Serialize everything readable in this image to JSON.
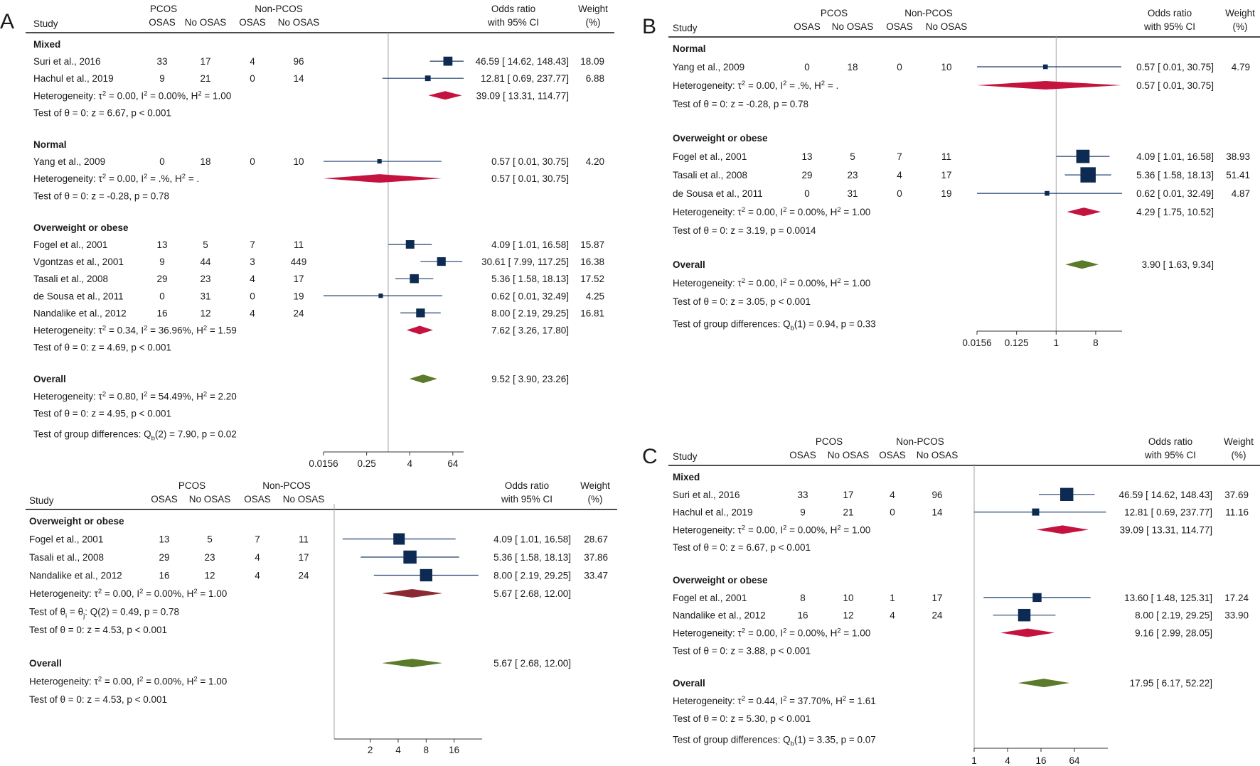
{
  "colors": {
    "marker": "#0d2b52",
    "ci_line": "#1d3f6e",
    "subgroup_diamond": "#c5133f",
    "subgroup_diamond_alt": "#8b2a32",
    "overall_diamond": "#5b7a2a",
    "ref_line": "#a0a0a0",
    "text": "#1a1a1a"
  },
  "chart_data": [
    {
      "panel_label": "A",
      "type": "forest",
      "header": {
        "study": "Study",
        "pcos": "PCOS",
        "nonpcos": "Non-PCOS",
        "osas": "OSAS",
        "no_osas": "No OSAS",
        "or_line1": "Odds ratio",
        "or_line2": "with 95% CI",
        "w_line1": "Weight",
        "w_line2": "(%)"
      },
      "xscale": "log2",
      "xlim": [
        0.0156,
        128
      ],
      "xticks": [
        0.0156,
        0.25,
        4,
        64
      ],
      "xticklabels": [
        "0.0156",
        "0.25",
        "4",
        "64"
      ],
      "ref_value": 1,
      "groups": [
        {
          "name": "Mixed",
          "studies": [
            {
              "study": "Suri et al., 2016",
              "pcos_osas": "33",
              "pcos_no": "17",
              "non_osas": "4",
              "non_no": "96",
              "or": 46.59,
              "lo": 14.62,
              "hi": 148.43,
              "or_text": "46.59 [ 14.62,  148.43]",
              "weight": "18.09"
            },
            {
              "study": "Hachul et al., 2019",
              "pcos_osas": "9",
              "pcos_no": "21",
              "non_osas": "0",
              "non_no": "14",
              "or": 12.81,
              "lo": 0.69,
              "hi": 237.77,
              "or_text": "12.81 [  0.69,  237.77]",
              "weight": "6.88"
            }
          ],
          "pooled": {
            "or": 39.09,
            "lo": 13.31,
            "hi": 114.77,
            "or_text": "39.09 [ 13.31,  114.77]"
          },
          "heterogeneity": "Heterogeneity: τ² = 0.00, I² = 0.00%, H² = 1.00",
          "test": "Test of θ = 0: z = 6.67, p < 0.001"
        },
        {
          "name": "Normal",
          "studies": [
            {
              "study": "Yang et al., 2009",
              "pcos_osas": "0",
              "pcos_no": "18",
              "non_osas": "0",
              "non_no": "10",
              "or": 0.57,
              "lo": 0.01,
              "hi": 30.75,
              "or_text": "0.57 [   0.01,   30.75]",
              "weight": "4.20"
            }
          ],
          "pooled": {
            "or": 0.57,
            "lo": 0.01,
            "hi": 30.75,
            "or_text": "0.57 [   0.01,   30.75]"
          },
          "heterogeneity": "Heterogeneity: τ² = 0.00, I² = .%, H² = .",
          "test": "Test of θ = 0: z = -0.28, p = 0.78"
        },
        {
          "name": "Overweight or obese",
          "studies": [
            {
              "study": "Fogel et al., 2001",
              "pcos_osas": "13",
              "pcos_no": "5",
              "non_osas": "7",
              "non_no": "11",
              "or": 4.09,
              "lo": 1.01,
              "hi": 16.58,
              "or_text": "4.09 [   1.01,   16.58]",
              "weight": "15.87"
            },
            {
              "study": "Vgontzas et al., 2001",
              "pcos_osas": "9",
              "pcos_no": "44",
              "non_osas": "3",
              "non_no": "449",
              "or": 30.61,
              "lo": 7.99,
              "hi": 117.25,
              "or_text": "30.61 [   7.99,  117.25]",
              "weight": "16.38"
            },
            {
              "study": "Tasali et al., 2008",
              "pcos_osas": "29",
              "pcos_no": "23",
              "non_osas": "4",
              "non_no": "17",
              "or": 5.36,
              "lo": 1.58,
              "hi": 18.13,
              "or_text": "5.36 [   1.58,   18.13]",
              "weight": "17.52"
            },
            {
              "study": "de Sousa et al., 2011",
              "pcos_osas": "0",
              "pcos_no": "31",
              "non_osas": "0",
              "non_no": "19",
              "or": 0.62,
              "lo": 0.01,
              "hi": 32.49,
              "or_text": "0.62 [   0.01,   32.49]",
              "weight": "4.25"
            },
            {
              "study": "Nandalike et al., 2012",
              "pcos_osas": "16",
              "pcos_no": "12",
              "non_osas": "4",
              "non_no": "24",
              "or": 8.0,
              "lo": 2.19,
              "hi": 29.25,
              "or_text": "8.00 [   2.19,   29.25]",
              "weight": "16.81"
            }
          ],
          "pooled": {
            "or": 7.62,
            "lo": 3.26,
            "hi": 17.8,
            "or_text": "7.62 [   3.26,   17.80]"
          },
          "heterogeneity": "Heterogeneity: τ² = 0.34, I² = 36.96%, H² = 1.59",
          "test": "Test of θ = 0: z = 4.69, p < 0.001"
        }
      ],
      "overall": {
        "label": "Overall",
        "or": 9.52,
        "lo": 3.9,
        "hi": 23.26,
        "or_text": "9.52 [   3.90,   23.26]",
        "heterogeneity": "Heterogeneity: τ² = 0.80, I² = 54.49%, H² = 2.20",
        "test": "Test of θ = 0: z = 4.95, p < 0.001"
      },
      "group_diff": "Test of group differences: Qb(2) = 7.90, p = 0.02"
    },
    {
      "panel_label": "",
      "type": "forest",
      "header": {
        "study": "Study",
        "pcos": "PCOS",
        "nonpcos": "Non-PCOS",
        "osas": "OSAS",
        "no_osas": "No OSAS",
        "or_line1": "Odds ratio",
        "or_line2": "with 95% CI",
        "w_line1": "Weight",
        "w_line2": "(%)"
      },
      "xscale": "log2",
      "xlim": [
        0.82,
        32
      ],
      "xticks": [
        2,
        4,
        8,
        16
      ],
      "xticklabels": [
        "2",
        "4",
        "8",
        "16"
      ],
      "ref_value": null,
      "groups": [
        {
          "name": "Overweight or obese",
          "studies": [
            {
              "study": "Fogel et al., 2001",
              "pcos_osas": "13",
              "pcos_no": "5",
              "non_osas": "7",
              "non_no": "11",
              "or": 4.09,
              "lo": 1.01,
              "hi": 16.58,
              "or_text": "4.09 [ 1.01,  16.58]",
              "weight": "28.67"
            },
            {
              "study": "Tasali et al., 2008",
              "pcos_osas": "29",
              "pcos_no": "23",
              "non_osas": "4",
              "non_no": "17",
              "or": 5.36,
              "lo": 1.58,
              "hi": 18.13,
              "or_text": "5.36 [ 1.58,  18.13]",
              "weight": "37.86"
            },
            {
              "study": "Nandalike et al., 2012",
              "pcos_osas": "16",
              "pcos_no": "12",
              "non_osas": "4",
              "non_no": "24",
              "or": 8.0,
              "lo": 2.19,
              "hi": 29.25,
              "or_text": "8.00 [ 2.19,  29.25]",
              "weight": "33.47"
            }
          ],
          "pooled": {
            "or": 5.67,
            "lo": 2.68,
            "hi": 12.0,
            "or_text": "5.67 [ 2.68,  12.00]"
          },
          "heterogeneity": "Heterogeneity: τ² = 0.00, I² = 0.00%, H² = 1.00",
          "test_q": "Test of θi = θj: Q(2) = 0.49, p = 0.78",
          "test": "Test of θ = 0: z = 4.53, p < 0.001"
        }
      ],
      "overall": {
        "label": "Overall",
        "or": 5.67,
        "lo": 2.68,
        "hi": 12.0,
        "or_text": "5.67 [ 2.68,  12.00]",
        "heterogeneity": "Heterogeneity: τ² = 0.00, I² = 0.00%, H² = 1.00",
        "test": "Test of θ = 0: z = 4.53, p < 0.001"
      },
      "group_diff": ""
    },
    {
      "panel_label": "B",
      "type": "forest",
      "header": {
        "study": "Study",
        "pcos": "PCOS",
        "nonpcos": "Non-PCOS",
        "osas": "OSAS",
        "no_osas": "No OSAS",
        "or_line1": "Odds ratio",
        "or_line2": "with 95% CI",
        "w_line1": "Weight",
        "w_line2": "(%)"
      },
      "xscale": "log2",
      "xlim": [
        0.0156,
        32
      ],
      "xticks": [
        0.0156,
        0.125,
        1,
        8
      ],
      "xticklabels": [
        "0.0156",
        "0.125",
        "1",
        "8"
      ],
      "ref_value": 1,
      "groups": [
        {
          "name": "Normal",
          "studies": [
            {
              "study": "Yang et al., 2009",
              "pcos_osas": "0",
              "pcos_no": "18",
              "non_osas": "0",
              "non_no": "10",
              "or": 0.57,
              "lo": 0.01,
              "hi": 30.75,
              "or_text": "0.57 [ 0.01,  30.75]",
              "weight": "4.79"
            }
          ],
          "pooled": {
            "or": 0.57,
            "lo": 0.01,
            "hi": 30.75,
            "or_text": "0.57 [ 0.01,  30.75]"
          },
          "heterogeneity": "Heterogeneity: τ² = 0.00, I² = .%, H² = .",
          "test": "Test of θ = 0: z = -0.28, p = 0.78"
        },
        {
          "name": "Overweight or obese",
          "studies": [
            {
              "study": "Fogel et al., 2001",
              "pcos_osas": "13",
              "pcos_no": "5",
              "non_osas": "7",
              "non_no": "11",
              "or": 4.09,
              "lo": 1.01,
              "hi": 16.58,
              "or_text": "4.09 [ 1.01,  16.58]",
              "weight": "38.93"
            },
            {
              "study": "Tasali et al., 2008",
              "pcos_osas": "29",
              "pcos_no": "23",
              "non_osas": "4",
              "non_no": "17",
              "or": 5.36,
              "lo": 1.58,
              "hi": 18.13,
              "or_text": "5.36 [ 1.58,  18.13]",
              "weight": "51.41"
            },
            {
              "study": "de Sousa et al., 2011",
              "pcos_osas": "0",
              "pcos_no": "31",
              "non_osas": "0",
              "non_no": "19",
              "or": 0.62,
              "lo": 0.01,
              "hi": 32.49,
              "or_text": "0.62 [ 0.01,  32.49]",
              "weight": "4.87"
            }
          ],
          "pooled": {
            "or": 4.29,
            "lo": 1.75,
            "hi": 10.52,
            "or_text": "4.29 [ 1.75,  10.52]"
          },
          "heterogeneity": "Heterogeneity: τ² = 0.00, I² = 0.00%, H² = 1.00",
          "test": "Test of θ = 0: z = 3.19, p = 0.0014"
        }
      ],
      "overall": {
        "label": "Overall",
        "or": 3.9,
        "lo": 1.63,
        "hi": 9.34,
        "or_text": "3.90 [ 1.63,    9.34]",
        "heterogeneity": "Heterogeneity: τ² = 0.00, I² = 0.00%, H² = 1.00",
        "test": "Test of θ = 0: z = 3.05, p < 0.001"
      },
      "group_diff": "Test of group differences: Qb(1) = 0.94, p = 0.33"
    },
    {
      "panel_label": "C",
      "type": "forest",
      "header": {
        "study": "Study",
        "pcos": "PCOS",
        "nonpcos": "Non-PCOS",
        "osas": "OSAS",
        "no_osas": "No OSAS",
        "or_line1": "Odds ratio",
        "or_line2": "with 95% CI",
        "w_line1": "Weight",
        "w_line2": "(%)"
      },
      "xscale": "log2",
      "xlim": [
        1,
        256
      ],
      "xticks": [
        1,
        4,
        16,
        64
      ],
      "xticklabels": [
        "1",
        "4",
        "16",
        "64"
      ],
      "ref_value": 1,
      "groups": [
        {
          "name": "Mixed",
          "studies": [
            {
              "study": "Suri et al., 2016",
              "pcos_osas": "33",
              "pcos_no": "17",
              "non_osas": "4",
              "non_no": "96",
              "or": 46.59,
              "lo": 14.62,
              "hi": 148.43,
              "or_text": "46.59 [ 14.62,  148.43]",
              "weight": "37.69"
            },
            {
              "study": "Hachul et al., 2019",
              "pcos_osas": "9",
              "pcos_no": "21",
              "non_osas": "0",
              "non_no": "14",
              "or": 12.81,
              "lo": 0.69,
              "hi": 237.77,
              "or_text": "12.81 [   0.69,  237.77]",
              "weight": "11.16"
            }
          ],
          "pooled": {
            "or": 39.09,
            "lo": 13.31,
            "hi": 114.77,
            "or_text": "39.09 [ 13.31,  114.77]"
          },
          "heterogeneity": "Heterogeneity: τ² = 0.00, I² = 0.00%, H² = 1.00",
          "test": "Test of θ = 0: z = 6.67, p < 0.001"
        },
        {
          "name": "Overweight or obese",
          "studies": [
            {
              "study": "Fogel et al., 2001",
              "pcos_osas": "8",
              "pcos_no": "10",
              "non_osas": "1",
              "non_no": "17",
              "or": 13.6,
              "lo": 1.48,
              "hi": 125.31,
              "or_text": "13.60 [   1.48,  125.31]",
              "weight": "17.24"
            },
            {
              "study": "Nandalike et al., 2012",
              "pcos_osas": "16",
              "pcos_no": "12",
              "non_osas": "4",
              "non_no": "24",
              "or": 8.0,
              "lo": 2.19,
              "hi": 29.25,
              "or_text": "8.00 [   2.19,   29.25]",
              "weight": "33.90"
            }
          ],
          "pooled": {
            "or": 9.16,
            "lo": 2.99,
            "hi": 28.05,
            "or_text": "9.16 [   2.99,   28.05]"
          },
          "heterogeneity": "Heterogeneity: τ² = 0.00, I² = 0.00%, H² = 1.00",
          "test": "Test of θ = 0: z = 3.88, p < 0.001"
        }
      ],
      "overall": {
        "label": "Overall",
        "or": 17.95,
        "lo": 6.17,
        "hi": 52.22,
        "or_text": "17.95 [   6.17,   52.22]",
        "heterogeneity": "Heterogeneity: τ² = 0.44, I² = 37.70%, H² = 1.61",
        "test": "Test of θ = 0: z = 5.30, p < 0.001"
      },
      "group_diff": "Test of group differences: Qb(1) = 3.35, p = 0.07"
    }
  ]
}
